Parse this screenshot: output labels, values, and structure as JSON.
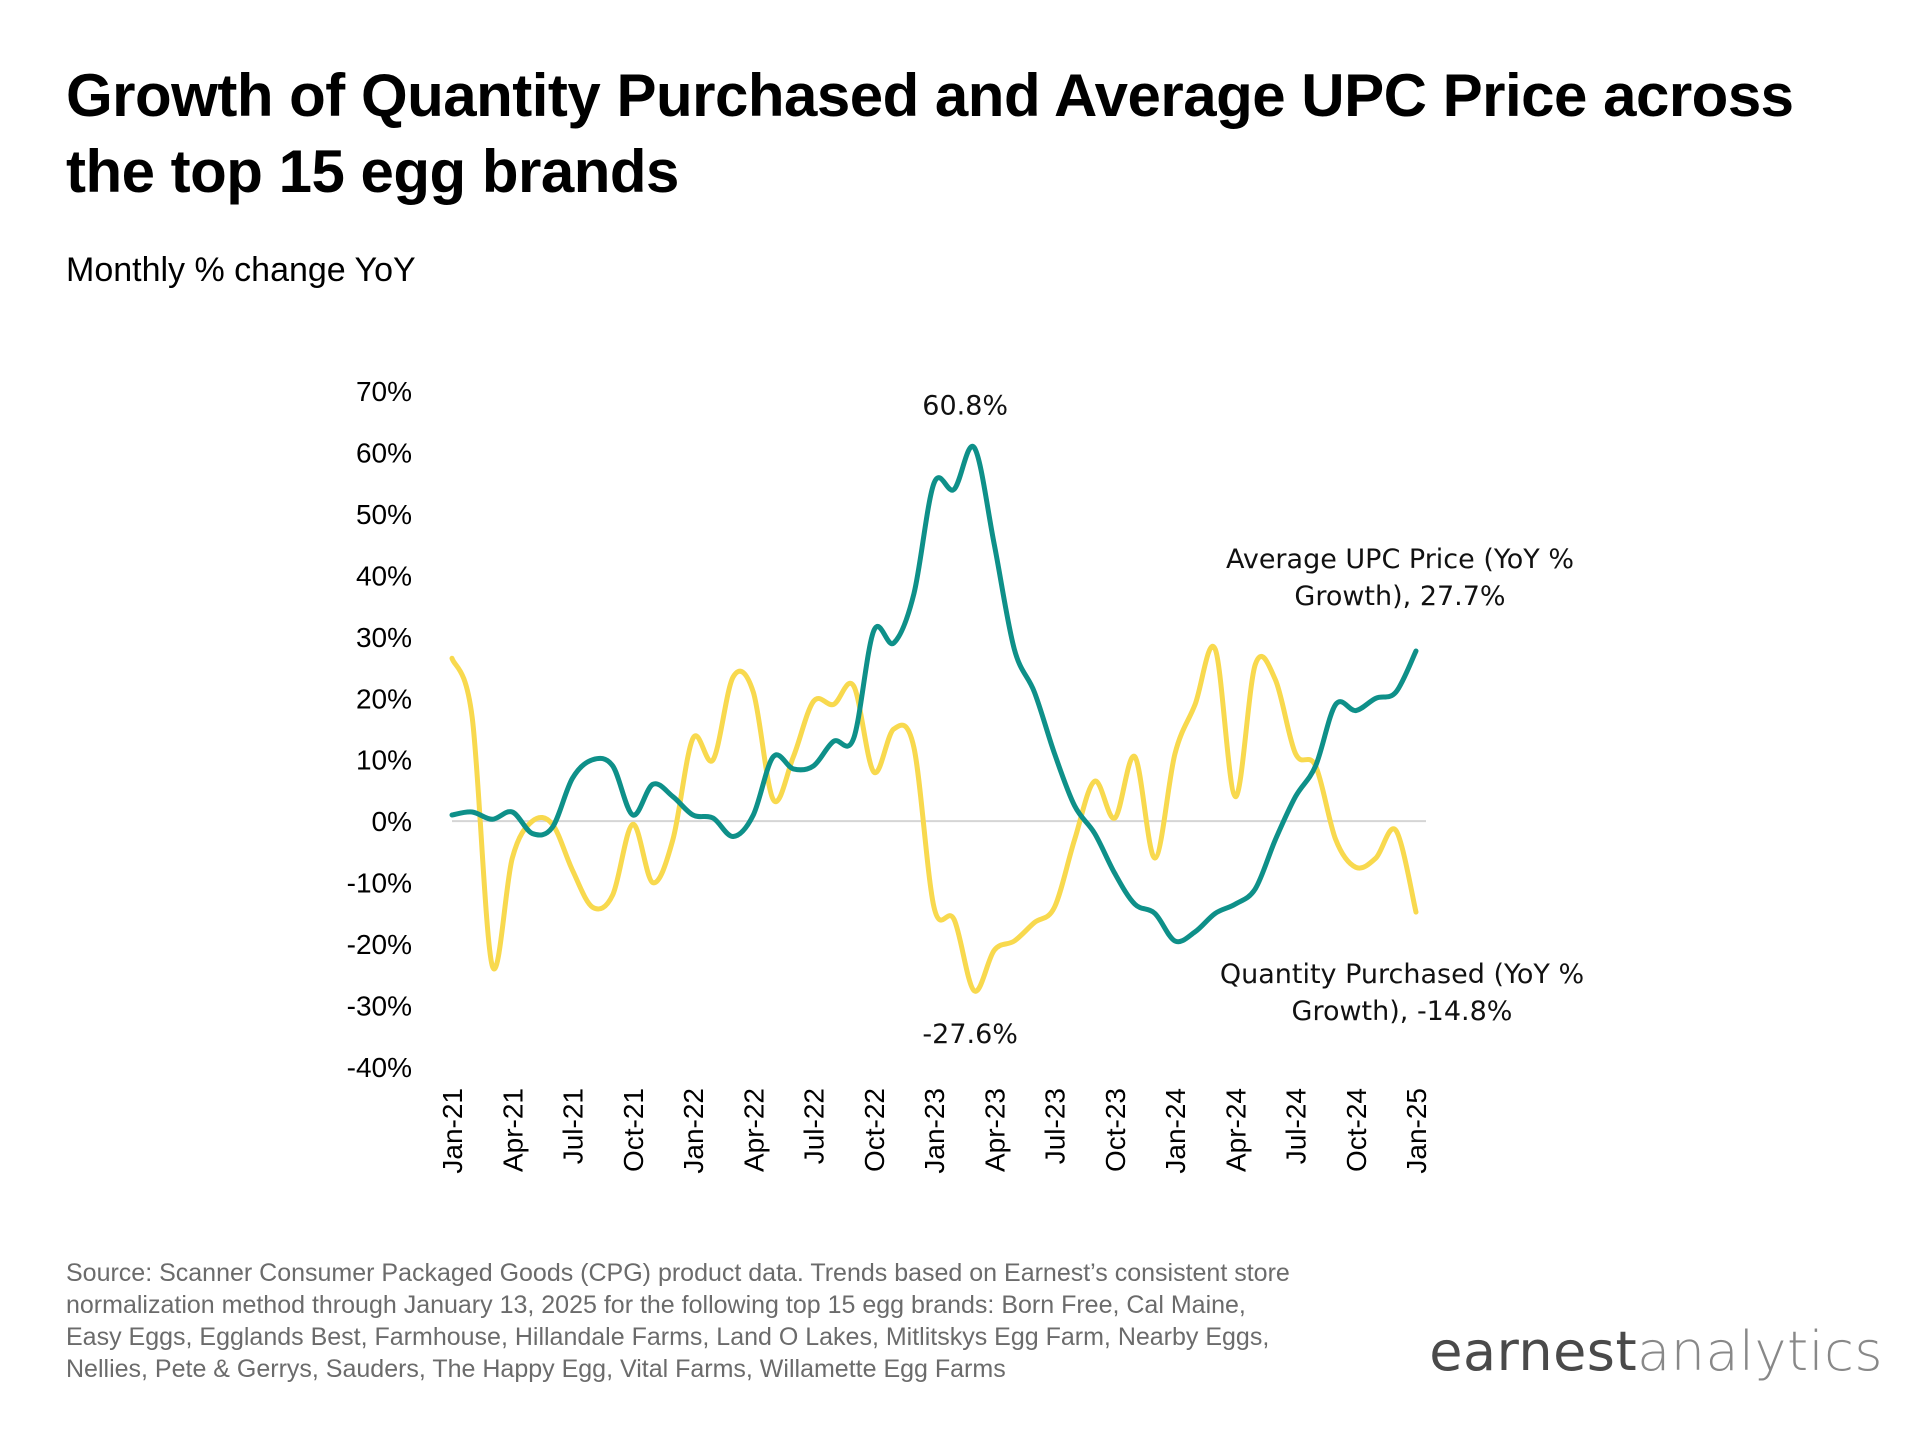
{
  "title": "Growth of Quantity Purchased and Average UPC Price across the top 15 egg brands",
  "subtitle": "Monthly % change YoY",
  "source": "Source: Scanner Consumer Packaged Goods (CPG) product data. Trends based on Earnest’s consistent store normalization method through January 13, 2025 for the following top 15 egg brands: Born Free, Cal Maine, Easy Eggs, Egglands Best, Farmhouse, Hillandale Farms, Land O Lakes, Mitlitskys Egg Farm, Nearby Eggs, Nellies, Pete & Gerrys, Sauders, The Happy Egg, Vital Farms, Willamette Egg Farms",
  "logo": {
    "part1": "earnest",
    "part2": "analytics"
  },
  "colors": {
    "price": "#0e9089",
    "quantity": "#f8d94e",
    "zero_line": "#d5d5d5"
  },
  "chart_data": {
    "type": "line",
    "title": "Growth of Quantity Purchased and Average UPC Price across the top 15 egg brands",
    "ylabel": "Monthly % change YoY",
    "ylim": [
      -40,
      70
    ],
    "yticks": [
      70,
      60,
      50,
      40,
      30,
      20,
      10,
      0,
      -10,
      -20,
      -30,
      -40
    ],
    "ytick_labels": [
      "70%",
      "60%",
      "50%",
      "40%",
      "30%",
      "20%",
      "10%",
      "0%",
      "-10%",
      "-20%",
      "-30%",
      "-40%"
    ],
    "x_tick_labels": [
      "Jan-21",
      "Apr-21",
      "Jul-21",
      "Oct-21",
      "Jan-22",
      "Apr-22",
      "Jul-22",
      "Oct-22",
      "Jan-23",
      "Apr-23",
      "Jul-23",
      "Oct-23",
      "Jan-24",
      "Apr-24",
      "Jul-24",
      "Oct-24",
      "Jan-25"
    ],
    "x_tick_step_months": 3,
    "months": 49,
    "series": [
      {
        "name": "Average UPC Price (YoY % Growth)",
        "color": "#0e9089",
        "values": [
          1,
          1.5,
          0.3,
          1.5,
          -2,
          -1,
          7,
          10,
          9,
          1,
          6,
          4,
          1,
          0.5,
          -2.5,
          1,
          10.5,
          8.5,
          9,
          13,
          13.5,
          31,
          29,
          37,
          55,
          54,
          60.8,
          45,
          28,
          21,
          11,
          2.5,
          -2,
          -8.5,
          -13.5,
          -15,
          -19.5,
          -18,
          -15,
          -13.5,
          -11,
          -3,
          4,
          9,
          19,
          18,
          20,
          21,
          27.7
        ]
      },
      {
        "name": "Quantity Purchased (YoY % Growth)",
        "color": "#f8d94e",
        "values": [
          26.5,
          17,
          -23.5,
          -6,
          0,
          -0.5,
          -8,
          -14,
          -12,
          -0.5,
          -10,
          -3,
          13.5,
          10,
          23.5,
          21,
          3.5,
          10.5,
          19.5,
          19,
          22,
          8,
          15,
          12,
          -14,
          -16,
          -27.6,
          -21,
          -19.5,
          -16.5,
          -14,
          -3,
          6.5,
          0.5,
          10.5,
          -6,
          11,
          19,
          28,
          4,
          25.5,
          23,
          11,
          9,
          -3,
          -7.5,
          -6,
          -1.5,
          -14.8
        ]
      }
    ],
    "annotations": [
      {
        "text": "60.8%",
        "series": 0,
        "month": 26
      },
      {
        "text": "-27.6%",
        "series": 1,
        "month": 26
      },
      {
        "lines": [
          "Average UPC Price (YoY %",
          "Growth), 27.7%"
        ],
        "series": 0
      },
      {
        "lines": [
          "Quantity Purchased (YoY %",
          "Growth), -14.8%"
        ],
        "series": 1
      }
    ]
  }
}
